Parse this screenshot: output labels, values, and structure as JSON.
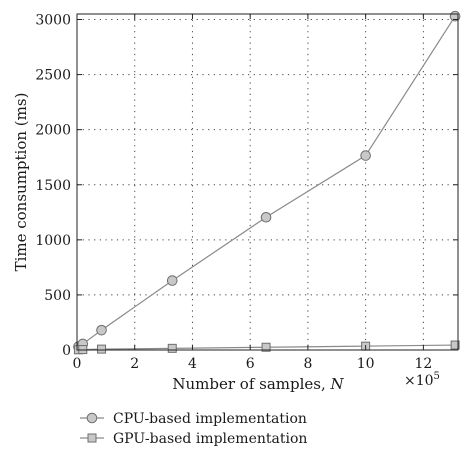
{
  "chart_data": {
    "type": "line",
    "xlabel": "Number of samples, N",
    "xlabel_main": "Number of samples, ",
    "xlabel_var": "N",
    "ylabel": "Time consumption (ms)",
    "x_multiplier": "×10⁵",
    "x_multiplier_base": "×10",
    "x_multiplier_exp": "5",
    "xlim": [
      0,
      13.2
    ],
    "ylim": [
      0,
      3050
    ],
    "x_ticks": [
      0,
      2,
      4,
      6,
      8,
      10,
      12
    ],
    "x_tick_labels": [
      "0",
      "2",
      "4",
      "6",
      "8",
      "10",
      "12"
    ],
    "y_ticks": [
      0,
      500,
      1000,
      1500,
      2000,
      2500,
      3000
    ],
    "y_tick_labels": [
      "0",
      "500",
      "1000",
      "1500",
      "2000",
      "2500",
      "3000"
    ],
    "grid": true,
    "legend_position": "bottom-left, below plot",
    "series": [
      {
        "name": "CPU-based implementation",
        "marker": "circle",
        "line_color": "#8a8a8a",
        "marker_fill": "#c8c8c8",
        "x": [
          0.05,
          0.2,
          0.85,
          3.3,
          6.55,
          10.0,
          13.1
        ],
        "y": [
          30,
          55,
          180,
          630,
          1205,
          1765,
          3030
        ]
      },
      {
        "name": "GPU-based implementation",
        "marker": "square",
        "line_color": "#8a8a8a",
        "marker_fill": "#c8c8c8",
        "x": [
          0.05,
          0.2,
          0.85,
          3.3,
          6.55,
          10.0,
          13.1
        ],
        "y": [
          2,
          4,
          8,
          15,
          25,
          35,
          45
        ]
      }
    ]
  }
}
